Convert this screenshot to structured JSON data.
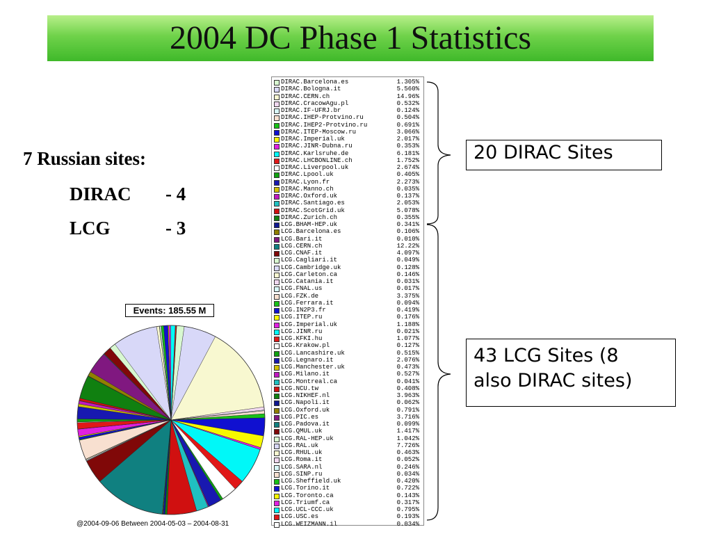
{
  "title": "2004 DC Phase 1 Statistics",
  "left_text": {
    "heading": "7 Russian sites:",
    "dirac_label": "DIRAC",
    "dirac_value": "- 4",
    "lcg_label": "LCG",
    "lcg_value": "- 3"
  },
  "callouts": {
    "dirac": "20 DIRAC Sites",
    "lcg_line1": "43 LCG Sites (8",
    "lcg_line2": "also DIRAC sites)"
  },
  "chart_data": {
    "type": "pie",
    "title": "Events: 185.55 M",
    "footnote": "@2004-09-06  Between  2004-05-03 – 2004-08-31",
    "slices": [
      {
        "label": "DIRAC.Barcelona.es",
        "pct": "1.305%",
        "value": 1.305,
        "color": "#d8f8d0"
      },
      {
        "label": "DIRAC.Bologna.it",
        "pct": "5.560%",
        "value": 5.56,
        "color": "#d8d8f8"
      },
      {
        "label": "DIRAC.CERN.ch",
        "pct": "14.96%",
        "value": 14.96,
        "color": "#f8f8d0"
      },
      {
        "label": "DIRAC.CracowAgu.pl",
        "pct": "0.532%",
        "value": 0.532,
        "color": "#f0d8f0"
      },
      {
        "label": "DIRAC.IF-UFRJ.br",
        "pct": "0.124%",
        "value": 0.124,
        "color": "#d8f8f8"
      },
      {
        "label": "DIRAC.IHEP-Protvino.ru",
        "pct": "0.504%",
        "value": 0.504,
        "color": "#f8e0d0"
      },
      {
        "label": "DIRAC.IHEP2-Protvino.ru",
        "pct": "0.691%",
        "value": 0.691,
        "color": "#18c018"
      },
      {
        "label": "DIRAC.ITEP-Moscow.ru",
        "pct": "3.066%",
        "value": 3.066,
        "color": "#1010d0"
      },
      {
        "label": "DIRAC.Imperial.uk",
        "pct": "2.017%",
        "value": 2.017,
        "color": "#f8f800"
      },
      {
        "label": "DIRAC.JINR-Dubna.ru",
        "pct": "0.353%",
        "value": 0.353,
        "color": "#e020e0"
      },
      {
        "label": "DIRAC.Karlsruhe.de",
        "pct": "6.181%",
        "value": 6.181,
        "color": "#00f8f8"
      },
      {
        "label": "DIRAC.LHCBONLINE.ch",
        "pct": "1.752%",
        "value": 1.752,
        "color": "#e01818"
      },
      {
        "label": "DIRAC.Liverpool.uk",
        "pct": "2.674%",
        "value": 2.674,
        "color": "#ffffff"
      },
      {
        "label": "DIRAC.Lpool.uk",
        "pct": "0.405%",
        "value": 0.405,
        "color": "#10a010"
      },
      {
        "label": "DIRAC.Lyon.fr",
        "pct": "2.273%",
        "value": 2.273,
        "color": "#1818b0"
      },
      {
        "label": "DIRAC.Manno.ch",
        "pct": "0.035%",
        "value": 0.035,
        "color": "#d0c000"
      },
      {
        "label": "DIRAC.Oxford.uk",
        "pct": "0.137%",
        "value": 0.137,
        "color": "#c018c0"
      },
      {
        "label": "DIRAC.Santiago.es",
        "pct": "2.053%",
        "value": 2.053,
        "color": "#20c0c0"
      },
      {
        "label": "DIRAC.ScotGrid.uk",
        "pct": "5.078%",
        "value": 5.078,
        "color": "#d01010"
      },
      {
        "label": "DIRAC.Zurich.ch",
        "pct": "0.355%",
        "value": 0.355,
        "color": "#108010"
      },
      {
        "label": "LCG.BHAM-HEP.uk",
        "pct": "0.341%",
        "value": 0.341,
        "color": "#101890"
      },
      {
        "label": "LCG.Barcelona.es",
        "pct": "0.106%",
        "value": 0.106,
        "color": "#908000"
      },
      {
        "label": "LCG.Bari.it",
        "pct": "0.010%",
        "value": 0.01,
        "color": "#801880"
      },
      {
        "label": "LCG.CERN.ch",
        "pct": "12.22%",
        "value": 12.22,
        "color": "#108080"
      },
      {
        "label": "LCG.CNAF.it",
        "pct": "4.097%",
        "value": 4.097,
        "color": "#800808"
      },
      {
        "label": "LCG.Cagliari.it",
        "pct": "0.049%",
        "value": 0.049,
        "color": "#d8f8d0"
      },
      {
        "label": "LCG.Cambridge.uk",
        "pct": "0.128%",
        "value": 0.128,
        "color": "#d8d8f8"
      },
      {
        "label": "LCG.Carleton.ca",
        "pct": "0.146%",
        "value": 0.146,
        "color": "#f8f8d0"
      },
      {
        "label": "LCG.Catania.it",
        "pct": "0.031%",
        "value": 0.031,
        "color": "#f0d8f0"
      },
      {
        "label": "LCG.FNAL.us",
        "pct": "0.017%",
        "value": 0.017,
        "color": "#d8f8f8"
      },
      {
        "label": "LCG.FZK.de",
        "pct": "3.375%",
        "value": 3.375,
        "color": "#f8e0d0"
      },
      {
        "label": "LCG.Ferrara.it",
        "pct": "0.094%",
        "value": 0.094,
        "color": "#18c018"
      },
      {
        "label": "LCG.IN2P3.fr",
        "pct": "0.419%",
        "value": 0.419,
        "color": "#1010d0"
      },
      {
        "label": "LCG.ITEP.ru",
        "pct": "0.176%",
        "value": 0.176,
        "color": "#f8f800"
      },
      {
        "label": "LCG.Imperial.uk",
        "pct": "1.188%",
        "value": 1.188,
        "color": "#e020e0"
      },
      {
        "label": "LCG.JINR.ru",
        "pct": "0.021%",
        "value": 0.021,
        "color": "#00f8f8"
      },
      {
        "label": "LCG.KFKI.hu",
        "pct": "1.077%",
        "value": 1.077,
        "color": "#e01818"
      },
      {
        "label": "LCG.Krakow.pl",
        "pct": "0.127%",
        "value": 0.127,
        "color": "#ffffff"
      },
      {
        "label": "LCG.Lancashire.uk",
        "pct": "0.515%",
        "value": 0.515,
        "color": "#10a010"
      },
      {
        "label": "LCG.Legnaro.it",
        "pct": "2.076%",
        "value": 2.076,
        "color": "#1818b0"
      },
      {
        "label": "LCG.Manchester.uk",
        "pct": "0.473%",
        "value": 0.473,
        "color": "#d0c000"
      },
      {
        "label": "LCG.Milano.it",
        "pct": "0.527%",
        "value": 0.527,
        "color": "#c018c0"
      },
      {
        "label": "LCG.Montreal.ca",
        "pct": "0.041%",
        "value": 0.041,
        "color": "#20c0c0"
      },
      {
        "label": "LCG.NCU.tw",
        "pct": "0.408%",
        "value": 0.408,
        "color": "#d01010"
      },
      {
        "label": "LCG.NIKHEF.nl",
        "pct": "3.963%",
        "value": 3.963,
        "color": "#108010"
      },
      {
        "label": "LCG.Napoli.it",
        "pct": "0.062%",
        "value": 0.062,
        "color": "#101890"
      },
      {
        "label": "LCG.Oxford.uk",
        "pct": "0.791%",
        "value": 0.791,
        "color": "#908000"
      },
      {
        "label": "LCG.PIC.es",
        "pct": "3.716%",
        "value": 3.716,
        "color": "#801880"
      },
      {
        "label": "LCG.Padova.it",
        "pct": "0.099%",
        "value": 0.099,
        "color": "#108080"
      },
      {
        "label": "LCG.QMUL.uk",
        "pct": "1.417%",
        "value": 1.417,
        "color": "#800808"
      },
      {
        "label": "LCG.RAL-HEP.uk",
        "pct": "1.042%",
        "value": 1.042,
        "color": "#d8f8d0"
      },
      {
        "label": "LCG.RAL.uk",
        "pct": "7.726%",
        "value": 7.726,
        "color": "#d8d8f8"
      },
      {
        "label": "LCG.RHUL.uk",
        "pct": "0.463%",
        "value": 0.463,
        "color": "#f8f8d0"
      },
      {
        "label": "LCG.Roma.it",
        "pct": "0.052%",
        "value": 0.052,
        "color": "#f0d8f0"
      },
      {
        "label": "LCG.SARA.nl",
        "pct": "0.246%",
        "value": 0.246,
        "color": "#d8f8f8"
      },
      {
        "label": "LCG.SINP.ru",
        "pct": "0.034%",
        "value": 0.034,
        "color": "#f8e0d0"
      },
      {
        "label": "LCG.Sheffield.uk",
        "pct": "0.420%",
        "value": 0.42,
        "color": "#18c018"
      },
      {
        "label": "LCG.Torino.it",
        "pct": "0.722%",
        "value": 0.722,
        "color": "#1010d0"
      },
      {
        "label": "LCG.Toronto.ca",
        "pct": "0.143%",
        "value": 0.143,
        "color": "#f8f800"
      },
      {
        "label": "LCG.Triumf.ca",
        "pct": "0.317%",
        "value": 0.317,
        "color": "#e020e0"
      },
      {
        "label": "LCG.UCL-CCC.uk",
        "pct": "0.795%",
        "value": 0.795,
        "color": "#00f8f8"
      },
      {
        "label": "LCG.USC.es",
        "pct": "0.193%",
        "value": 0.193,
        "color": "#e01818"
      },
      {
        "label": "LCG.WEIZMANN.il",
        "pct": "0.034%",
        "value": 0.034,
        "color": "#ffffff"
      }
    ]
  }
}
